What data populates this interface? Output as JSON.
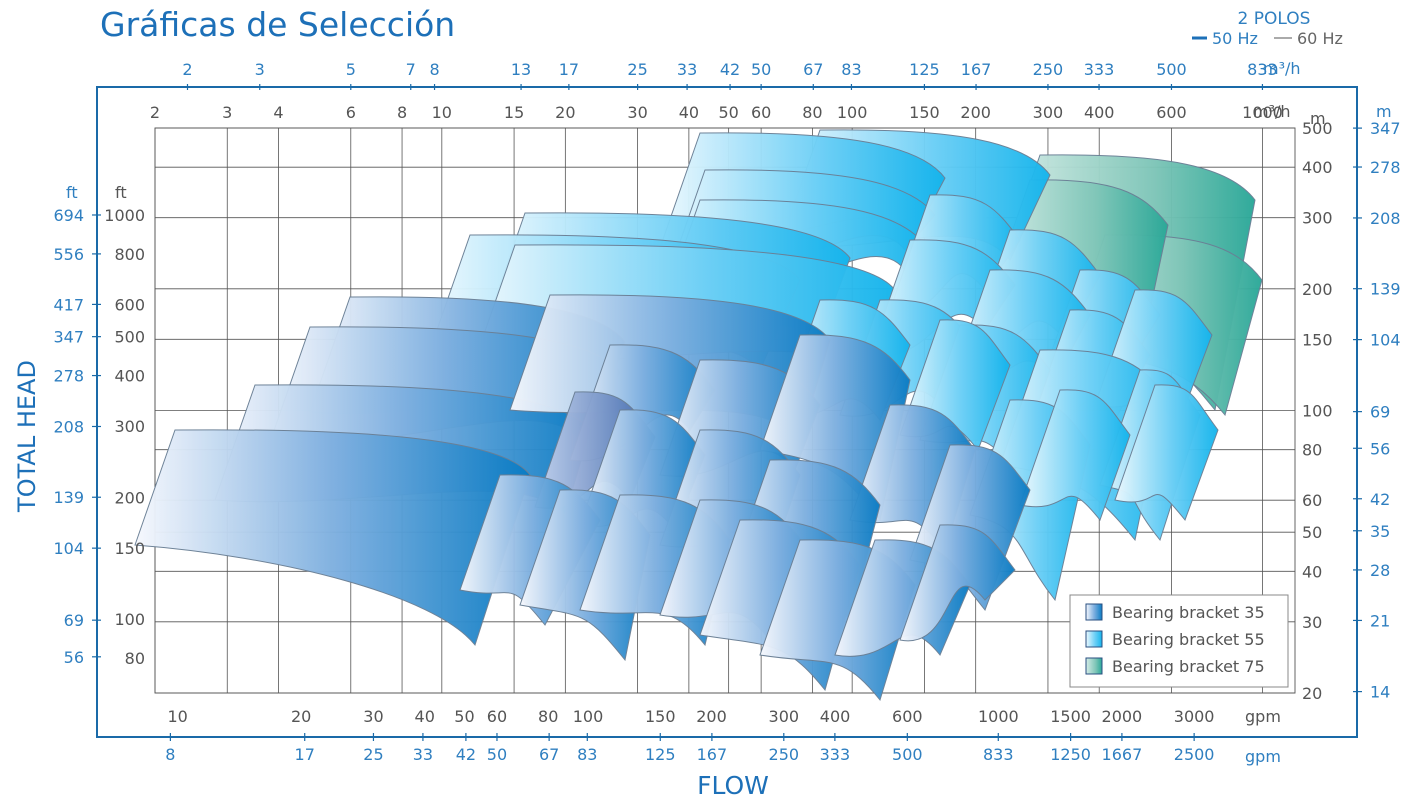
{
  "chart_data": {
    "type": "area",
    "title": "Gráficas de Selección",
    "header": {
      "poles": "2 POLOS",
      "hz50": "50 Hz",
      "hz60": "60 Hz"
    },
    "xlabel": "FLOW",
    "ylabel": "TOTAL HEAD",
    "units": {
      "m3h": "m³/h",
      "gpm": "gpm",
      "m": "m",
      "ft": "ft"
    },
    "top_outer_ticks": [
      "2",
      "3",
      "5",
      "7",
      "8",
      "13",
      "17",
      "25",
      "33",
      "42",
      "50",
      "67",
      "83",
      "125",
      "167",
      "250",
      "333",
      "500",
      "833"
    ],
    "top_inner_ticks": [
      "2",
      "3",
      "4",
      "6",
      "8",
      "10",
      "15",
      "20",
      "30",
      "40",
      "50",
      "60",
      "80",
      "100",
      "150",
      "200",
      "300",
      "400",
      "600",
      "1000"
    ],
    "bottom_inner_ticks": [
      "10",
      "20",
      "30",
      "40",
      "50",
      "60",
      "80",
      "100",
      "150",
      "200",
      "300",
      "400",
      "600",
      "1000",
      "1500",
      "2000",
      "3000"
    ],
    "bottom_outer_ticks": [
      "8",
      "17",
      "25",
      "33",
      "42",
      "50",
      "67",
      "83",
      "125",
      "167",
      "250",
      "333",
      "500",
      "833",
      "1250",
      "1667",
      "2500"
    ],
    "right_inner_ticks": [
      "500",
      "400",
      "300",
      "200",
      "150",
      "100",
      "80",
      "60",
      "50",
      "40",
      "30",
      "20"
    ],
    "right_outer_ticks": [
      "347",
      "278",
      "208",
      "139",
      "104",
      "69",
      "56",
      "42",
      "35",
      "28",
      "21",
      "14"
    ],
    "left_inner_ticks": [
      "1000",
      "800",
      "600",
      "500",
      "400",
      "300",
      "200",
      "150",
      "100",
      "80"
    ],
    "left_outer_ticks": [
      "694",
      "556",
      "417",
      "347",
      "278",
      "208",
      "139",
      "104",
      "69",
      "56"
    ],
    "legend": [
      "Bearing bracket 35",
      "Bearing bracket 55",
      "Bearing bracket 75"
    ],
    "series_colors": [
      "#0a7cc4",
      "#14b4ec",
      "#2aa898"
    ],
    "frame_color": "#1a6aa8",
    "x_scale": "log",
    "y_scale": "log",
    "xlim_m3h": [
      2,
      1200
    ],
    "ylim_m": [
      20,
      500
    ]
  }
}
